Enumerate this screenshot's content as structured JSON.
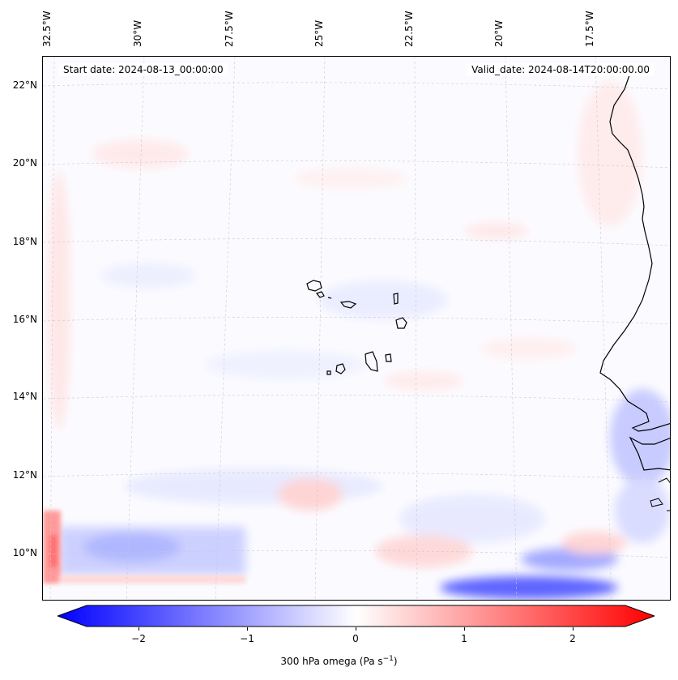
{
  "map": {
    "start_label": "Start date: 2024-08-13_00:00:00",
    "valid_label": "Valid_date: 2024-08-14T20:00:00.00",
    "lon_labels": [
      "32.5°W",
      "30°W",
      "27.5°W",
      "25°W",
      "22.5°W",
      "20°W",
      "17.5°W"
    ],
    "lat_labels": [
      "22°N",
      "20°N",
      "18°N",
      "16°N",
      "14°N",
      "12°N",
      "10°N"
    ],
    "field": "300 hPa omega"
  },
  "colorbar": {
    "label_main": "300 hPa omega (Pa s",
    "label_sup": "−1",
    "label_end": ")",
    "ticks": [
      "−2",
      "−1",
      "0",
      "1",
      "2"
    ],
    "min": -2.6,
    "max": 2.6,
    "colormap": "bwr"
  },
  "colors": {
    "neg": "#0000ff",
    "zero": "#ffffff",
    "pos": "#ff0000",
    "coast": "#000000",
    "grid": "#c8c8d0"
  }
}
